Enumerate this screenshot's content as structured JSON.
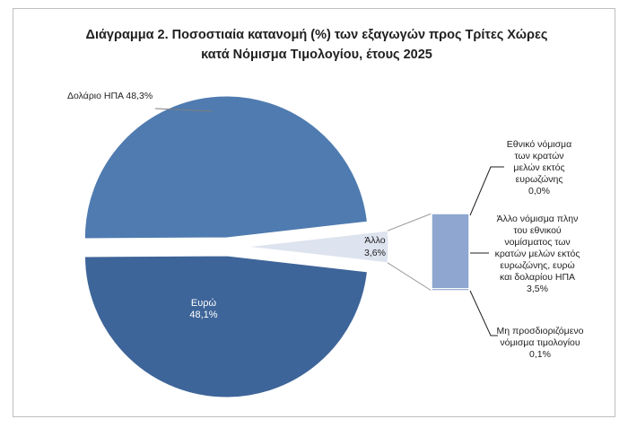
{
  "chart_data": {
    "type": "pie",
    "title_line1": "Διάγραμμα 2. Ποσοστιαία κατανομή (%) των εξαγωγών προς Τρίτες Χώρες",
    "title_line2": "κατά Νόμισμα Τιμολογίου, έτους 2025",
    "main_slices": [
      {
        "label_lines": [
          "Δολάριο ΗΠΑ 48,3%"
        ],
        "value": 48.3,
        "color": "#4f7bb0"
      },
      {
        "label_lines": [
          "Άλλο",
          "3,6%"
        ],
        "value": 3.6,
        "color": "#dde3ef"
      },
      {
        "label_lines": [
          "Ευρώ",
          "48,1%"
        ],
        "value": 48.1,
        "color": "#3e6599"
      }
    ],
    "breakdown": {
      "of": "Άλλο",
      "color": "#8fa7d0",
      "items": [
        {
          "label_lines": [
            "Εθνικό νόμισμα",
            "των κρατών",
            "μελών εκτός",
            "ευρωζώνης",
            "0,0%"
          ],
          "value": 0.0
        },
        {
          "label_lines": [
            "Άλλο νόμισμα πλην",
            "του εθνικού",
            "νομίσματος των",
            "κρατών μελών εκτός",
            "ευρωζώνης, ευρώ",
            "και δολαρίου ΗΠΑ",
            "3,5%"
          ],
          "value": 3.5
        },
        {
          "label_lines": [
            "Μη προσδιοριζόμενο",
            "νόμισμα τιμολογίου",
            "0,1%"
          ],
          "value": 0.1
        }
      ]
    }
  }
}
